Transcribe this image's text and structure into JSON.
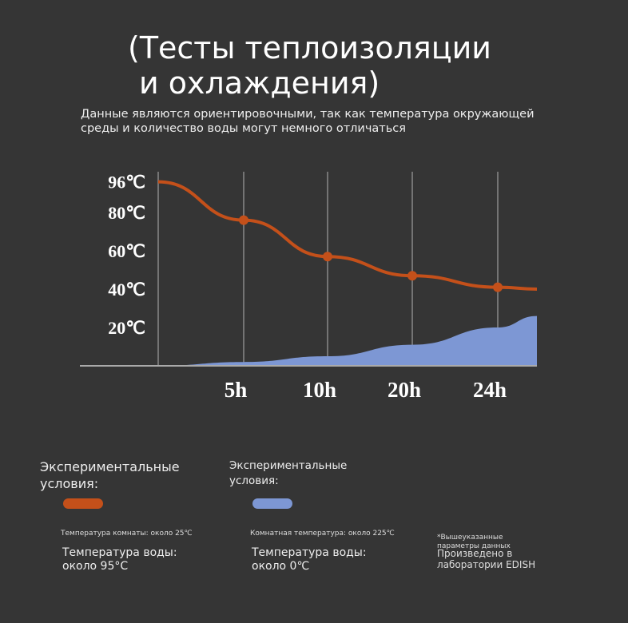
{
  "chart_data": {
    "type": "area_line",
    "title": [
      "(Тесты теплоизоляции",
      "и охлаждения)"
    ],
    "subtitle": [
      "Данные являются ориентировочными, так как температура окружающей",
      "среды и количество воды могут немного отличаться"
    ],
    "categories": [
      null,
      "5h",
      "10h",
      "20h",
      "24h",
      null
    ],
    "series": [
      {
        "name": "Экспериментальные условия:",
        "color": "#c4501a",
        "values": [
          96,
          76,
          57,
          47,
          41,
          40
        ],
        "notes": [
          "Температура комнаты: около 25℃",
          "Температура воды: около 95°C"
        ]
      },
      {
        "name": "Экспериментальные условия:",
        "color": "#7d97d4",
        "values": [
          0,
          2,
          5,
          11,
          20,
          26
        ],
        "notes": [
          "Комнатная температура: около 225℃",
          "Температура воды: около 0℃"
        ]
      }
    ],
    "ylim": [
      0,
      100
    ],
    "yticks": [
      {
        "value": 96,
        "label": "96℃"
      },
      {
        "value": 80,
        "label": "80℃"
      },
      {
        "value": 60,
        "label": "60℃"
      },
      {
        "value": 40,
        "label": "40℃"
      },
      {
        "value": 20,
        "label": "20℃"
      }
    ],
    "footnote": [
      "*Вышеуказанные параметры данных",
      "Произведено в лаборатории EDISH"
    ]
  }
}
